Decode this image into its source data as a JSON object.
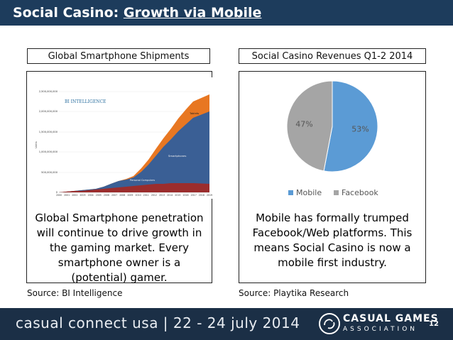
{
  "header": {
    "title_prefix": "Social Casino: ",
    "title_link": "Growth via Mobile"
  },
  "left_panel": {
    "label": "Global Smartphone Shipments",
    "caption": "Global Smartphone penetration will continue to drive growth in the gaming market. Every smartphone owner is a (potential) gamer.",
    "source": "Source: BI Intelligence",
    "chart_image": {
      "brand": "BI INTELLIGENCE",
      "y_axis_title": "Units",
      "y_ticks": [
        "2,500,000,000",
        "2,000,000,000",
        "1,500,000,000",
        "1,000,000,000",
        "500,000,000",
        "0"
      ],
      "x_ticks": [
        "2000",
        "2001",
        "2002",
        "2003",
        "2004",
        "2005",
        "2006",
        "2007",
        "2008",
        "2009",
        "2010",
        "2011",
        "2012",
        "2013",
        "2014",
        "2015",
        "2016",
        "2017",
        "2018",
        "2019"
      ],
      "area_labels": [
        "Tablets",
        "Smartphones",
        "Personal Computers"
      ]
    }
  },
  "right_panel": {
    "label": "Social Casino Revenues Q1-2 2014",
    "caption": "Mobile has formally trumped Facebook/Web platforms. This means Social Casino is now a mobile first industry.",
    "source": "Source: Playtika Research"
  },
  "chart_data": {
    "type": "pie",
    "title": "Social Casino Revenues Q1-2 2014",
    "categories": [
      "Mobile",
      "Facebook"
    ],
    "values": [
      53,
      47
    ],
    "labels": [
      "53%",
      "47%"
    ],
    "colors": [
      "#5b9bd5",
      "#a5a5a5"
    ],
    "legend_position": "bottom"
  },
  "footer": {
    "event": "casual connect usa | 22 - 24 july 2014",
    "org_line1": "CASUAL GAMES",
    "org_line2": "ASSOCIATION",
    "page_number": "12"
  },
  "colors": {
    "title_bar": "#1d3c5c",
    "footer": "#1b2f46",
    "pc": "#9b2d2d",
    "smartphones": "#3a5f95",
    "tablets": "#e87722"
  }
}
